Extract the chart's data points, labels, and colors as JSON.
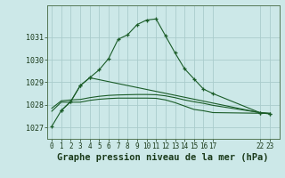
{
  "bg_color": "#cce8e8",
  "grid_color": "#aacccc",
  "line_color": "#1a5c28",
  "xlabel": "Graphe pression niveau de la mer (hPa)",
  "xlabel_fontsize": 7.5,
  "ylim": [
    1026.5,
    1032.4
  ],
  "yticks": [
    1027,
    1028,
    1029,
    1030,
    1031
  ],
  "line1_x": [
    0,
    1,
    2,
    3,
    4,
    5,
    6,
    7,
    8,
    9,
    10,
    11,
    12,
    13,
    14,
    15,
    16,
    17,
    22,
    23
  ],
  "line1_y": [
    1027.05,
    1027.75,
    1028.15,
    1028.85,
    1029.2,
    1029.55,
    1030.05,
    1030.9,
    1031.1,
    1031.55,
    1031.75,
    1031.8,
    1031.05,
    1030.3,
    1029.6,
    1029.15,
    1028.7,
    1028.5,
    1027.65,
    1027.6
  ],
  "line2_x": [
    1,
    2,
    3,
    4,
    22,
    23
  ],
  "line2_y": [
    1027.75,
    1028.15,
    1028.85,
    1029.2,
    1027.65,
    1027.62
  ],
  "line3_x": [
    0,
    1,
    2,
    3,
    4,
    5,
    6,
    7,
    8,
    9,
    10,
    11,
    12,
    13,
    14,
    15,
    16,
    17,
    22,
    23
  ],
  "line3_y": [
    1027.85,
    1028.18,
    1028.22,
    1028.24,
    1028.32,
    1028.38,
    1028.42,
    1028.44,
    1028.45,
    1028.46,
    1028.46,
    1028.45,
    1028.4,
    1028.32,
    1028.22,
    1028.14,
    1028.07,
    1027.98,
    1027.66,
    1027.63
  ],
  "line4_x": [
    0,
    1,
    2,
    3,
    4,
    5,
    6,
    7,
    8,
    9,
    10,
    11,
    12,
    13,
    14,
    15,
    16,
    17,
    22,
    23
  ],
  "line4_y": [
    1027.72,
    1028.12,
    1028.12,
    1028.12,
    1028.2,
    1028.25,
    1028.28,
    1028.3,
    1028.3,
    1028.3,
    1028.3,
    1028.29,
    1028.22,
    1028.1,
    1027.95,
    1027.8,
    1027.74,
    1027.66,
    1027.63,
    1027.62
  ],
  "xlim": [
    -0.5,
    24.0
  ],
  "tick_fontsize": 5.5,
  "ytick_fontsize": 6.0
}
